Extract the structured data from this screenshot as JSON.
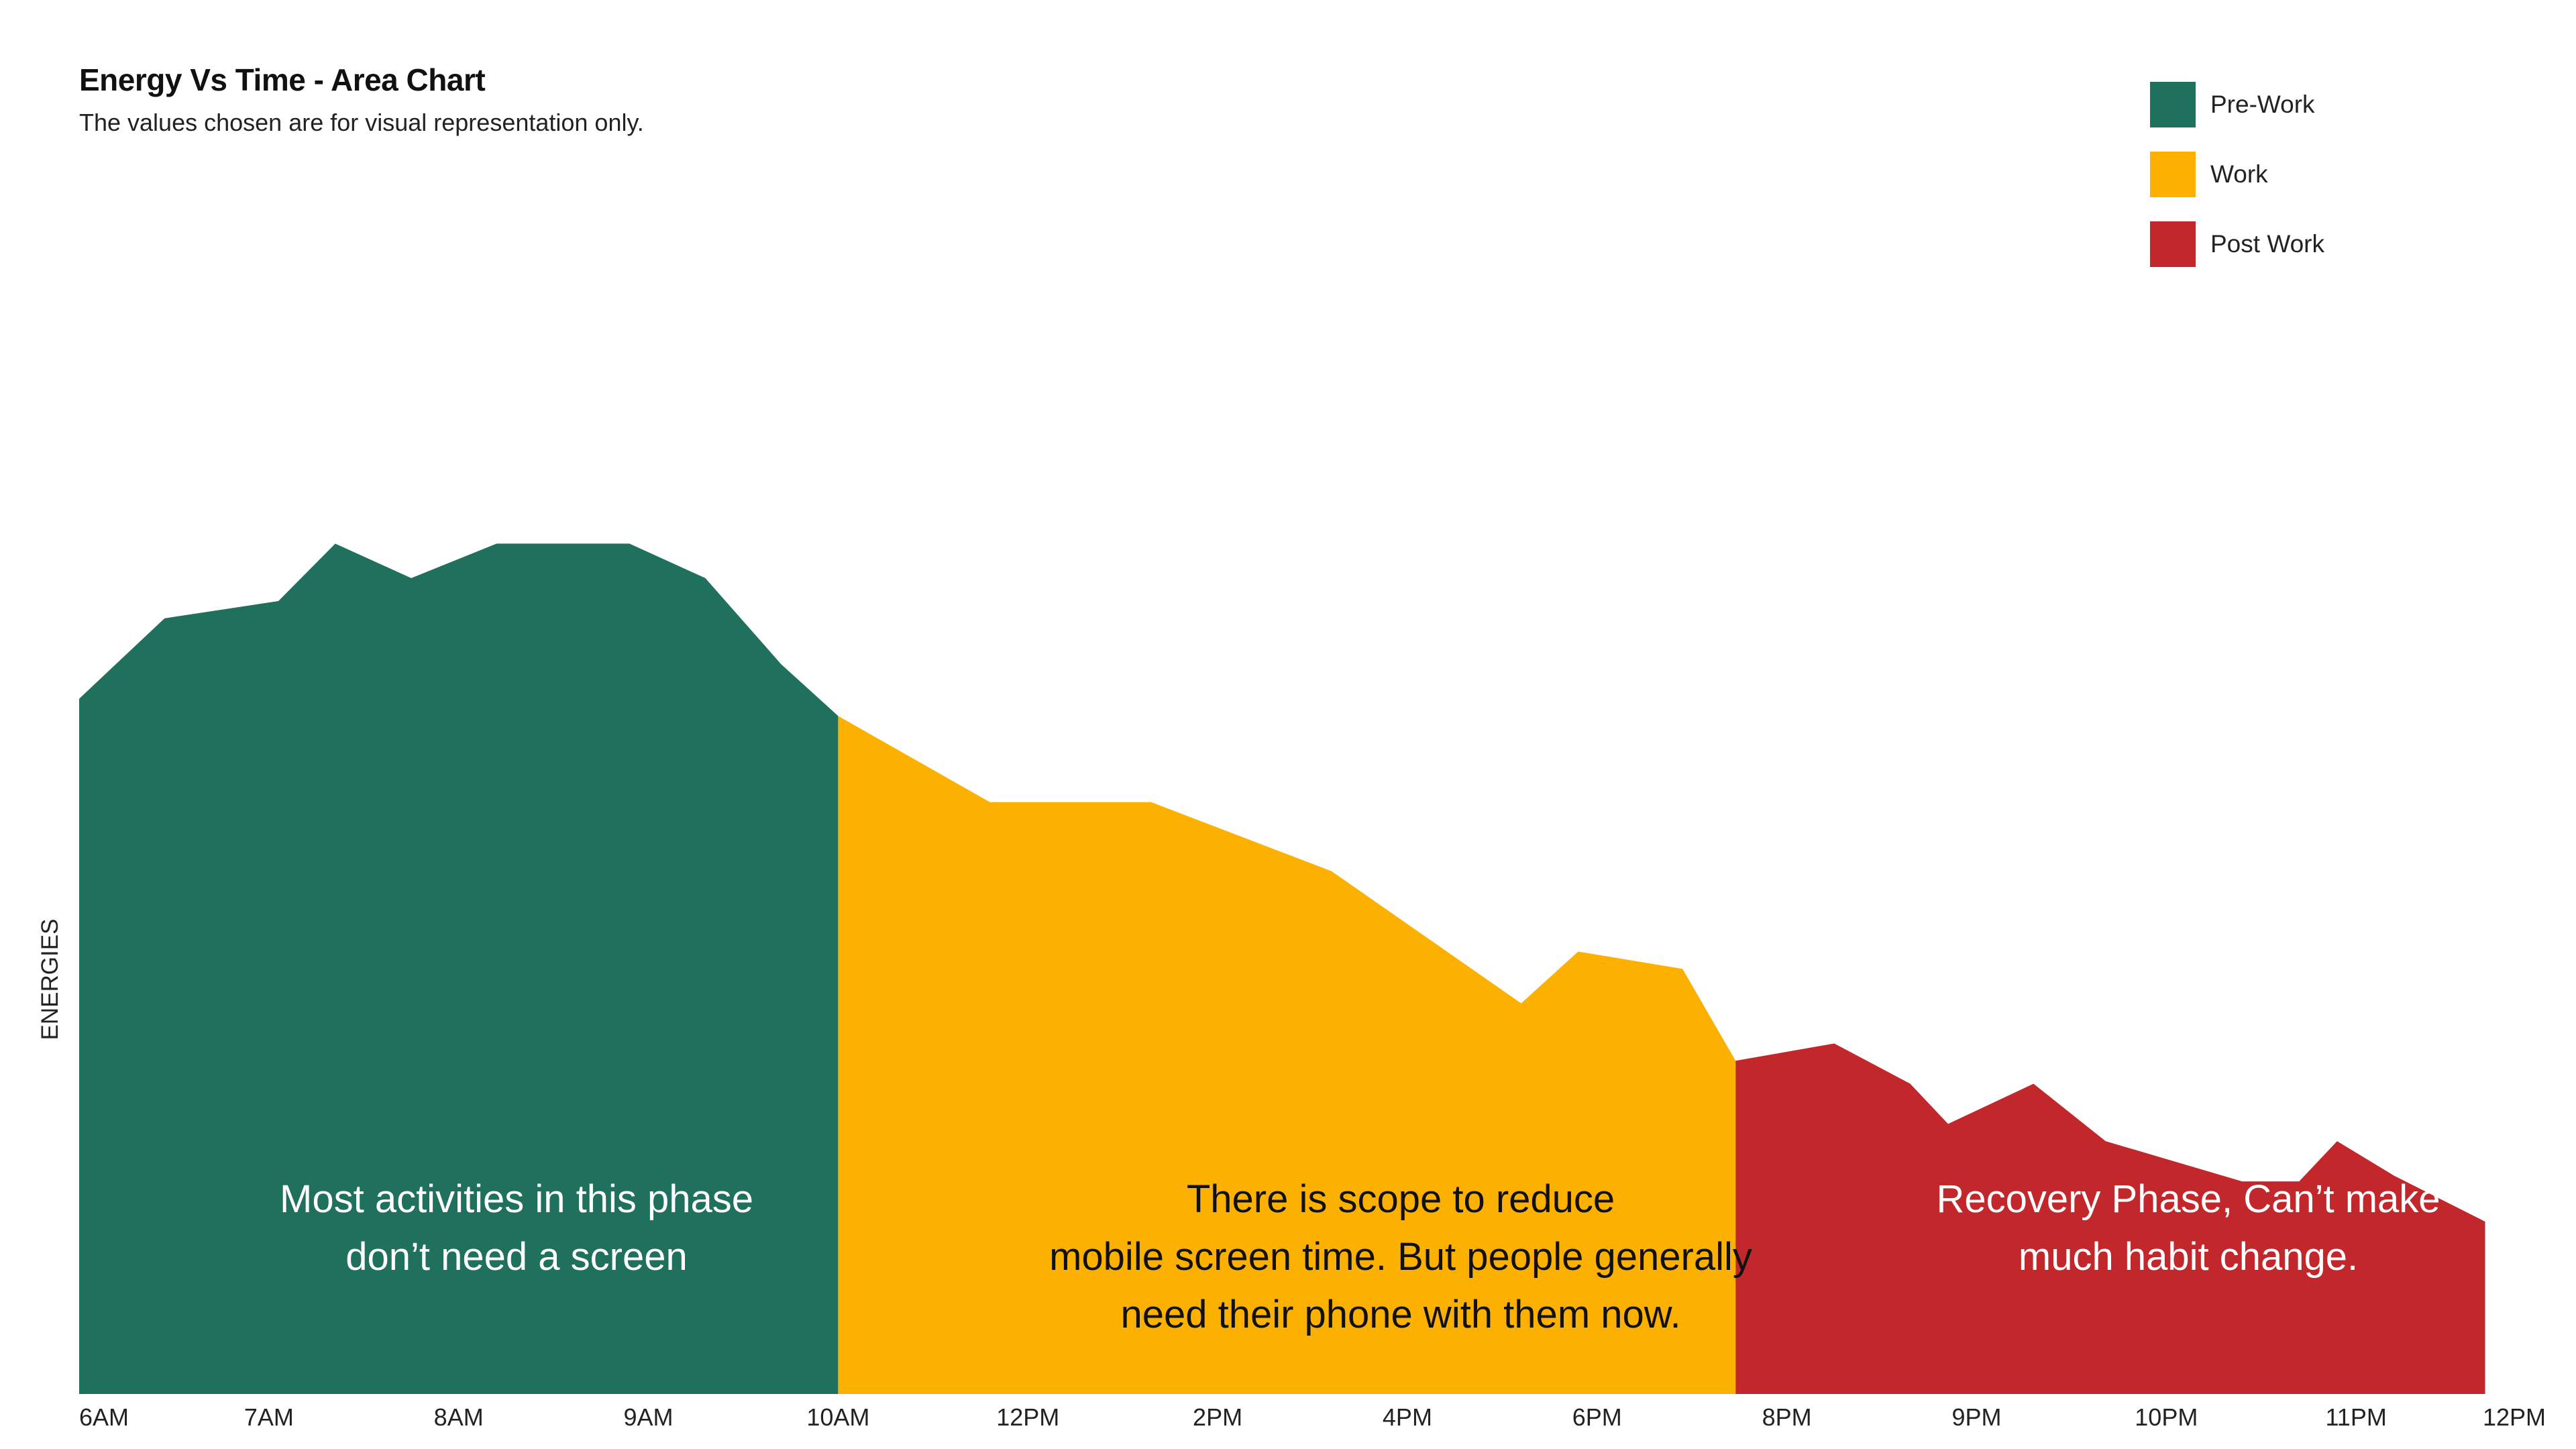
{
  "title": "Energy Vs Time - Area Chart",
  "subtitle": "The values chosen are for visual representation only.",
  "chart_data": {
    "type": "area",
    "title": "Energy Vs Time - Area Chart",
    "subtitle": "The values chosen are for visual representation only.",
    "xlabel": "",
    "ylabel": "ENERGIES",
    "ylim": [
      0,
      100
    ],
    "x_ticks": [
      "6AM",
      "7AM",
      "8AM",
      "9AM",
      "10AM",
      "12PM",
      "2PM",
      "4PM",
      "6PM",
      "8PM",
      "9PM",
      "10PM",
      "11PM",
      "12PM"
    ],
    "legend_position": "top-right",
    "grid": false,
    "series": [
      {
        "name": "Pre-Work",
        "color": "#1f705c",
        "points": [
          [
            0,
            60.5
          ],
          [
            0.45,
            67.5
          ],
          [
            1.05,
            69.0
          ],
          [
            1.35,
            74.0
          ],
          [
            1.75,
            71.0
          ],
          [
            2.2,
            74.0
          ],
          [
            2.9,
            74.0
          ],
          [
            3.3,
            71.0
          ],
          [
            3.7,
            63.5
          ],
          [
            4.0,
            59.0
          ]
        ]
      },
      {
        "name": "Work",
        "color": "#fcb101",
        "points": [
          [
            4.0,
            59.0
          ],
          [
            4.8,
            51.5
          ],
          [
            5.65,
            51.5
          ],
          [
            6.6,
            45.5
          ],
          [
            7.6,
            34.0
          ],
          [
            7.9,
            38.5
          ],
          [
            8.45,
            37.0
          ],
          [
            8.73,
            29.0
          ]
        ]
      },
      {
        "name": "Post Work",
        "color": "#c1272b",
        "points": [
          [
            8.73,
            29.0
          ],
          [
            9.25,
            30.5
          ],
          [
            9.65,
            27.0
          ],
          [
            9.85,
            23.5
          ],
          [
            10.3,
            27.0
          ],
          [
            10.68,
            22.0
          ],
          [
            11.4,
            18.5
          ],
          [
            11.7,
            18.5
          ],
          [
            11.9,
            22.0
          ],
          [
            12.2,
            19.0
          ],
          [
            12.68,
            15.0
          ]
        ]
      }
    ],
    "annotations": [
      {
        "series": "Pre-Work",
        "lines": [
          "Most activities in this phase",
          "don’t need a screen"
        ]
      },
      {
        "series": "Work",
        "lines": [
          "There is scope to reduce",
          "mobile screen time. But people generally",
          "need their phone with them now."
        ]
      },
      {
        "series": "Post Work",
        "lines": [
          "Recovery Phase, Can’t make",
          "much habit change."
        ]
      }
    ]
  }
}
